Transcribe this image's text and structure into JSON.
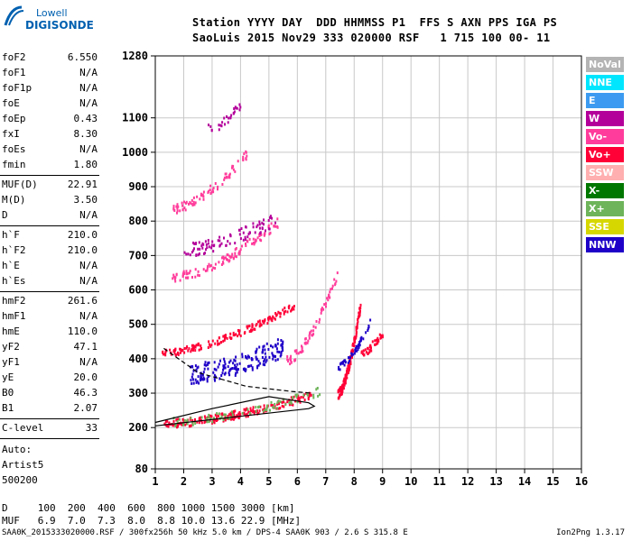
{
  "logo": {
    "line1": "Lowell",
    "line2": "DIGISONDE"
  },
  "header": {
    "row1": "Station YYYY DAY  DDD HHMMSS P1  FFS S AXN PPS IGA PS",
    "row2": "SaoLuis 2015 Nov29 333 020000 RSF   1 715 100 00- 11"
  },
  "sidebar": {
    "group1": [
      {
        "label": "foF2",
        "value": "6.550"
      },
      {
        "label": "foF1",
        "value": "N/A"
      },
      {
        "label": "foF1p",
        "value": "N/A"
      },
      {
        "label": "foE",
        "value": "N/A"
      },
      {
        "label": "foEp",
        "value": "0.43"
      },
      {
        "label": "fxI",
        "value": "8.30"
      },
      {
        "label": "foEs",
        "value": "N/A"
      },
      {
        "label": "fmin",
        "value": "1.80"
      }
    ],
    "group2": [
      {
        "label": "MUF(D)",
        "value": "22.91"
      },
      {
        "label": "M(D)",
        "value": "3.50"
      },
      {
        "label": "D",
        "value": "N/A"
      }
    ],
    "group3": [
      {
        "label": "h`F",
        "value": "210.0"
      },
      {
        "label": "h`F2",
        "value": "210.0"
      },
      {
        "label": "h`E",
        "value": "N/A"
      },
      {
        "label": "h`Es",
        "value": "N/A"
      }
    ],
    "group4": [
      {
        "label": "hmF2",
        "value": "261.6"
      },
      {
        "label": "hmF1",
        "value": "N/A"
      },
      {
        "label": "hmE",
        "value": "110.0"
      },
      {
        "label": "yF2",
        "value": "47.1"
      },
      {
        "label": "yF1",
        "value": "N/A"
      },
      {
        "label": "yE",
        "value": "20.0"
      },
      {
        "label": "B0",
        "value": "46.3"
      },
      {
        "label": "B1",
        "value": "2.07"
      }
    ],
    "clevel": {
      "label": "C-level",
      "value": "33"
    },
    "auto": [
      "Auto:",
      "Artist5",
      "500200"
    ]
  },
  "legend": [
    {
      "label": "NoVal",
      "color": "#b4b4b4"
    },
    {
      "label": "NNE",
      "color": "#00e6ff"
    },
    {
      "label": "E",
      "color": "#3c9bf0"
    },
    {
      "label": "W",
      "color": "#b4009b"
    },
    {
      "label": "Vo-",
      "color": "#ff3c9b"
    },
    {
      "label": "Vo+",
      "color": "#ff0037"
    },
    {
      "label": "SSW",
      "color": "#ffafaf"
    },
    {
      "label": "X-",
      "color": "#007800"
    },
    {
      "label": "X+",
      "color": "#6eb45a"
    },
    {
      "label": "SSE",
      "color": "#d7d700"
    },
    {
      "label": "NNW",
      "color": "#1e00c8"
    }
  ],
  "muf_table": {
    "d_row": "D     100  200  400  600  800 1000 1500 3000 [km]",
    "muf_row": "MUF   6.9  7.0  7.3  8.0  8.8 10.0 13.6 22.9 [MHz]"
  },
  "footer": {
    "left": "SAA0K_2015333020000.RSF / 300fx256h 50 kHz 5.0 km / DPS-4 SAA0K 903 / 2.6 S 315.8 E",
    "right": "Ion2Png 1.3.17"
  },
  "chart_data": {
    "type": "scatter",
    "title": "",
    "xlabel": "",
    "ylabel": "",
    "x_ticks": [
      1,
      2,
      3,
      4,
      5,
      6,
      7,
      8,
      9,
      10,
      11,
      12,
      13,
      14,
      15,
      16
    ],
    "y_ticks": [
      80,
      200,
      300,
      400,
      500,
      600,
      700,
      800,
      900,
      1000,
      1100,
      1280
    ],
    "xlim": [
      1,
      16
    ],
    "ylim": [
      80,
      1280
    ],
    "grid": true,
    "legend_position": "right",
    "trace_segments": [
      {
        "name": "Vo+",
        "x1": 1.3,
        "x2": 6.6,
        "h1": 215,
        "h2": 300,
        "spread": 12,
        "n": 220,
        "color": "#ff0037"
      },
      {
        "name": "X+",
        "x1": 1.6,
        "x2": 6.8,
        "h1": 220,
        "h2": 310,
        "spread": 12,
        "n": 80,
        "color": "#6eb45a"
      },
      {
        "name": "Vo+",
        "x1": 1.2,
        "x2": 5.9,
        "h1": 420,
        "h2": 560,
        "spread": 10,
        "n": 160,
        "color": "#ff0037"
      },
      {
        "name": "W",
        "x1": 2.2,
        "x2": 5.5,
        "h1": 360,
        "h2": 440,
        "spread": 30,
        "n": 180,
        "color": "#1e00c8"
      },
      {
        "name": "Vo-",
        "x1": 1.5,
        "x2": 5.3,
        "h1": 640,
        "h2": 800,
        "spread": 14,
        "n": 110,
        "color": "#ff3c9b"
      },
      {
        "name": "W",
        "x1": 2.0,
        "x2": 5.2,
        "h1": 720,
        "h2": 810,
        "spread": 20,
        "n": 90,
        "color": "#b4009b"
      },
      {
        "name": "Vo-",
        "x1": 1.6,
        "x2": 4.2,
        "h1": 840,
        "h2": 1000,
        "spread": 14,
        "n": 80,
        "color": "#ff3c9b"
      },
      {
        "name": "W",
        "x1": 2.8,
        "x2": 4.0,
        "h1": 1070,
        "h2": 1140,
        "spread": 14,
        "n": 28,
        "color": "#b4009b"
      },
      {
        "name": "Vo+",
        "x1": 7.4,
        "x2": 8.2,
        "h1": 300,
        "h2": 560,
        "spread": 14,
        "n": 160,
        "color": "#ff0037"
      },
      {
        "name": "NNW",
        "x1": 7.4,
        "x2": 8.6,
        "h1": 380,
        "h2": 520,
        "spread": 10,
        "n": 50,
        "color": "#1e00c8"
      },
      {
        "name": "Vo-",
        "x1": 5.6,
        "x2": 7.4,
        "h1": 400,
        "h2": 650,
        "spread": 14,
        "n": 70,
        "color": "#ff3c9b"
      },
      {
        "name": "Vo+",
        "x1": 8.2,
        "x2": 9.0,
        "h1": 420,
        "h2": 480,
        "spread": 12,
        "n": 40,
        "color": "#ff0037"
      }
    ],
    "profile_curves": [
      {
        "points": [
          [
            1.0,
            205
          ],
          [
            6.4,
            255
          ],
          [
            6.6,
            262
          ],
          [
            6.4,
            272
          ],
          [
            5.0,
            290
          ],
          [
            3.0,
            255
          ],
          [
            1.0,
            215
          ]
        ],
        "color": "#000000",
        "dashed": false
      },
      {
        "points": [
          [
            1.3,
            430
          ],
          [
            2.5,
            360
          ],
          [
            4.2,
            320
          ],
          [
            5.8,
            305
          ],
          [
            6.5,
            300
          ]
        ],
        "color": "#000000",
        "dashed": true
      }
    ]
  }
}
